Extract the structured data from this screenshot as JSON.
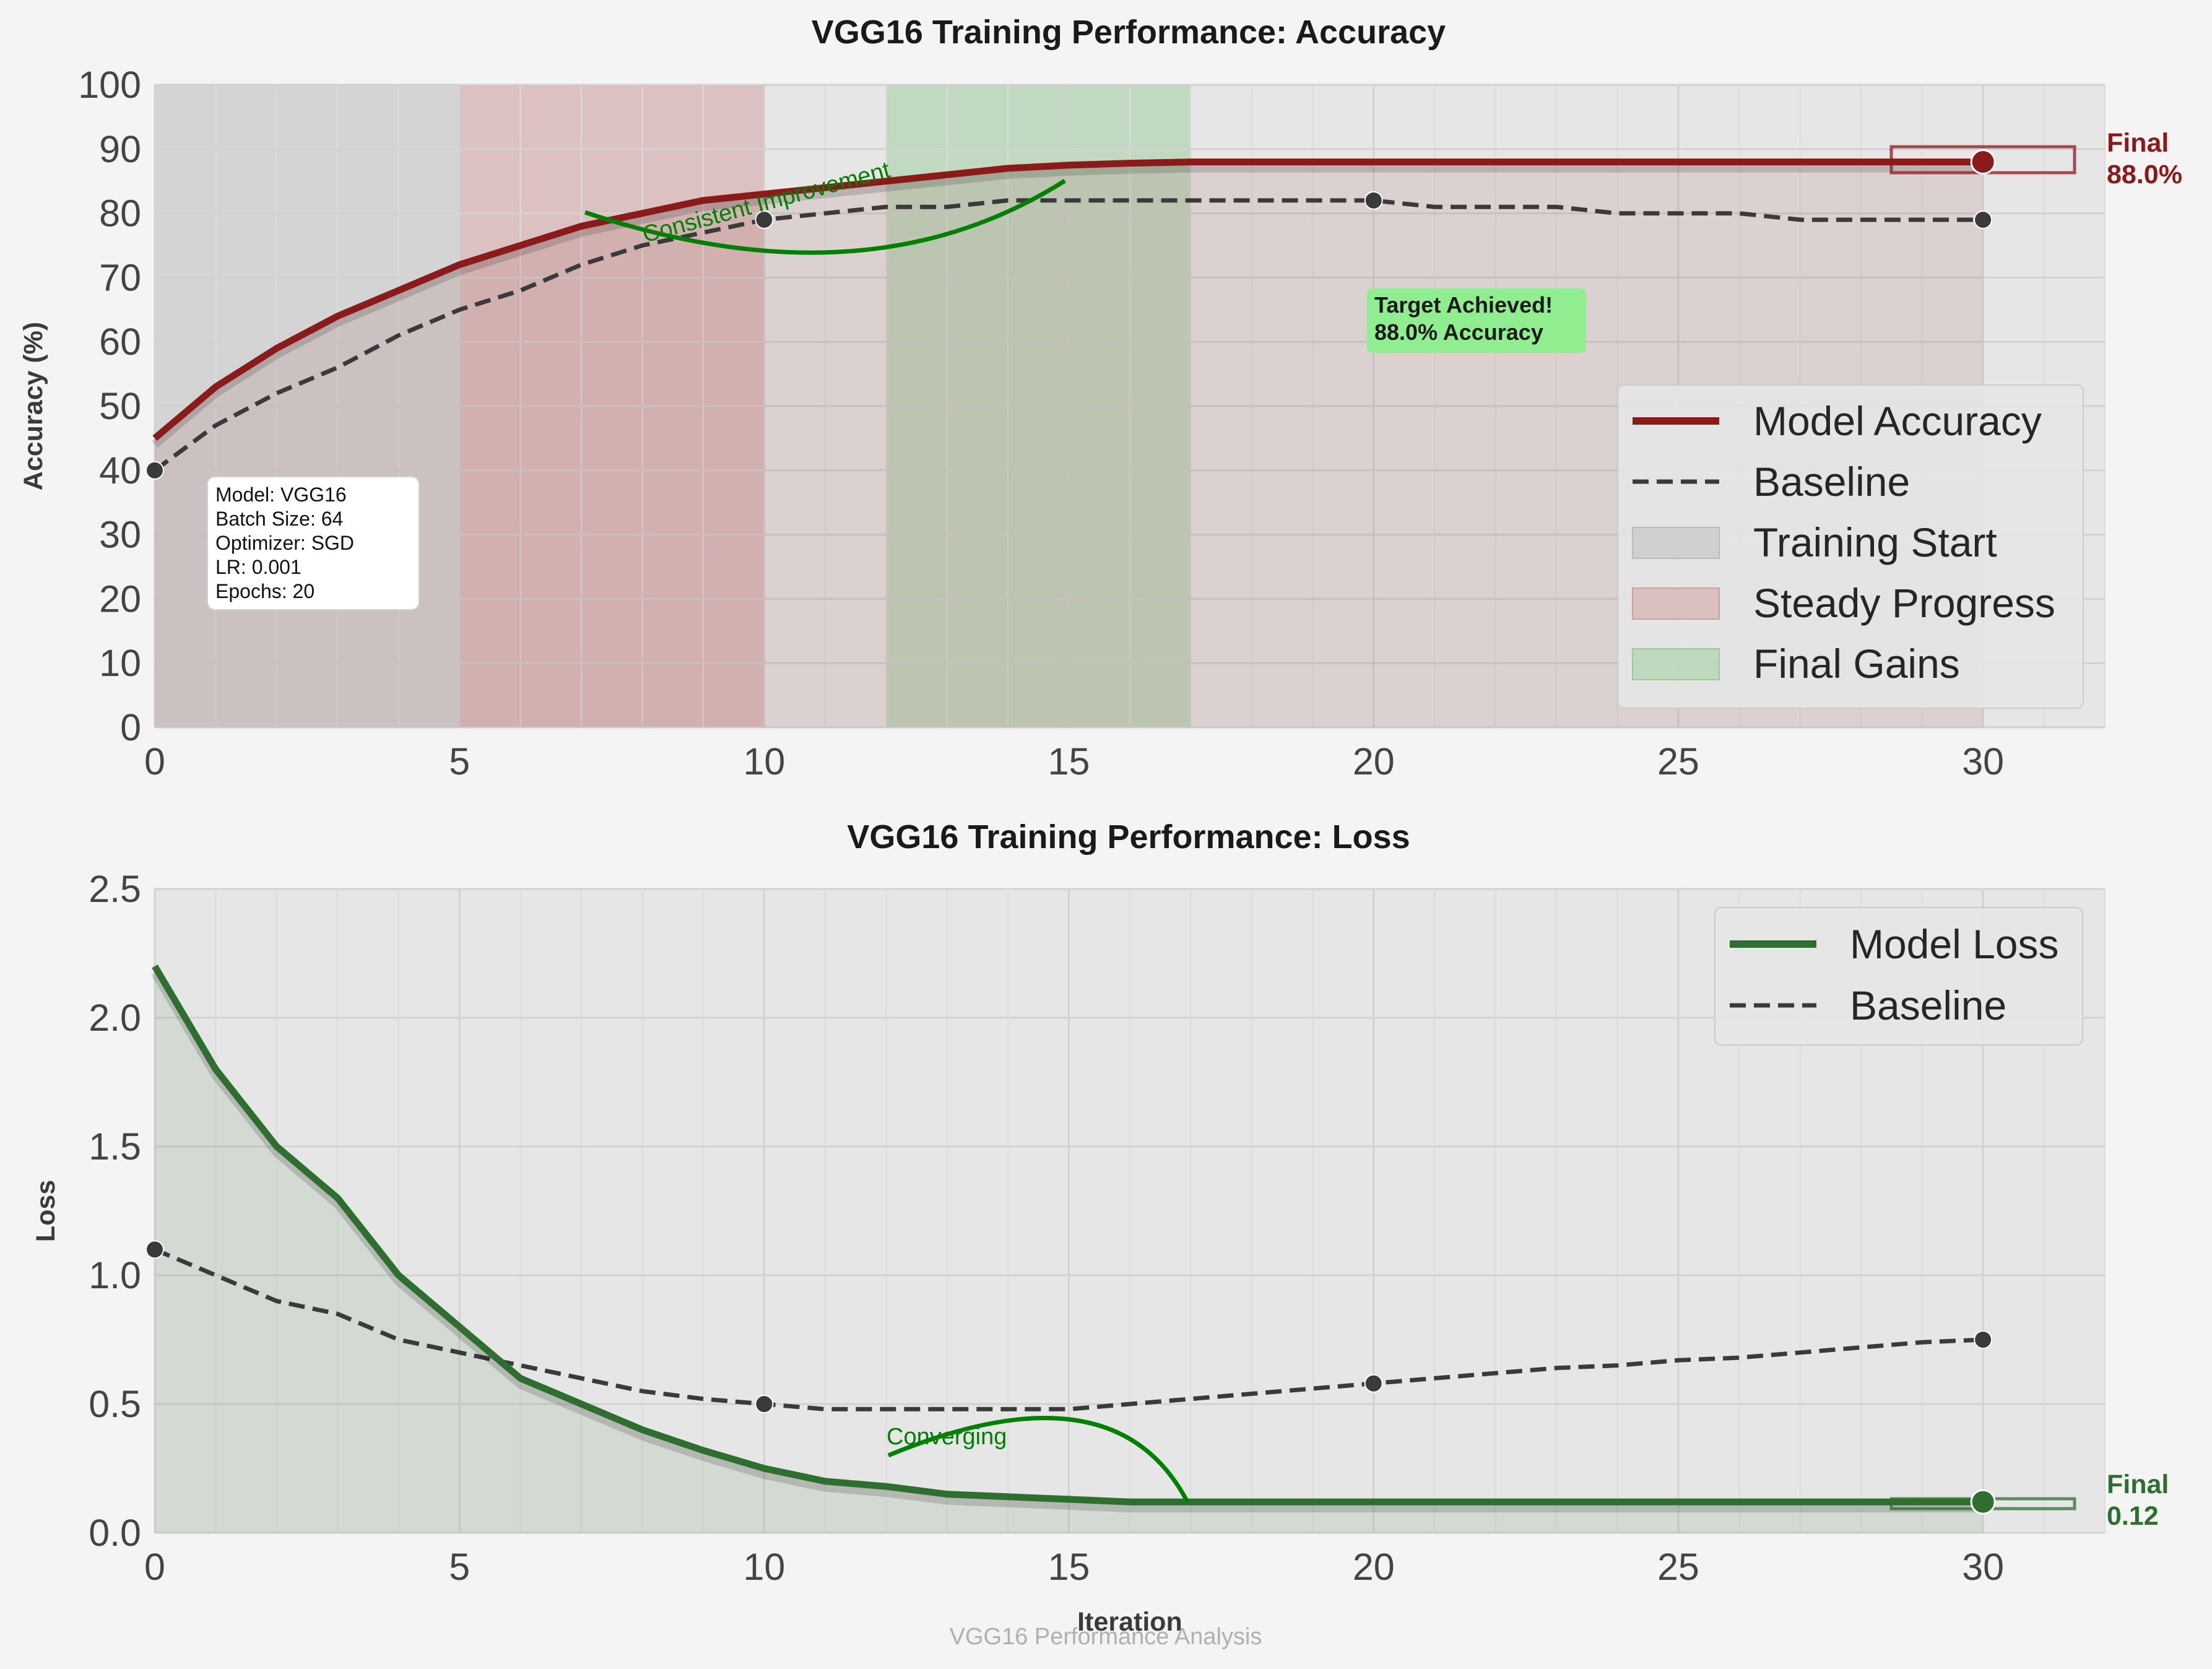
{
  "chart_data": [
    {
      "type": "line",
      "title": "VGG16 Training Performance: Accuracy",
      "xlabel": "",
      "ylabel": "Accuracy (%)",
      "xlim": [
        0,
        32
      ],
      "ylim": [
        0,
        100
      ],
      "x_ticks": [
        "0",
        "5",
        "10",
        "15",
        "20",
        "25",
        "30"
      ],
      "y_ticks": [
        "0",
        "10",
        "20",
        "30",
        "40",
        "50",
        "60",
        "70",
        "80",
        "90",
        "100"
      ],
      "grid": true,
      "legend_position": "right",
      "x": [
        0,
        1,
        2,
        3,
        4,
        5,
        6,
        7,
        8,
        9,
        10,
        11,
        12,
        13,
        14,
        15,
        16,
        17,
        18,
        19,
        20,
        21,
        22,
        23,
        24,
        25,
        26,
        27,
        28,
        29,
        30
      ],
      "series": [
        {
          "name": "Model Accuracy",
          "color": "#8b1a1a",
          "style": "solid",
          "values": [
            45,
            53,
            59,
            64,
            68,
            72,
            75,
            78,
            80,
            82,
            83,
            84,
            85,
            86,
            87,
            87.5,
            87.8,
            88,
            88,
            88,
            88,
            88,
            88,
            88,
            88,
            88,
            88,
            88,
            88,
            88,
            88
          ]
        },
        {
          "name": "Baseline",
          "color": "#3a3a3a",
          "style": "dashed",
          "values": [
            40,
            47,
            52,
            56,
            61,
            65,
            68,
            72,
            75,
            77,
            79,
            80,
            81,
            81,
            82,
            82,
            82,
            82,
            82,
            82,
            82,
            81,
            81,
            81,
            80,
            80,
            80,
            79,
            79,
            79,
            79
          ],
          "markers_at": [
            0,
            10,
            20,
            30
          ]
        }
      ],
      "regions": [
        {
          "name": "Training Start",
          "x_from": 0,
          "x_to": 5,
          "color": "#c8c8c8"
        },
        {
          "name": "Steady Progress",
          "x_from": 5,
          "x_to": 10,
          "color": "#d4a8a8"
        },
        {
          "name": "Final Gains",
          "x_from": 12,
          "x_to": 17,
          "color": "#a8d0a8"
        }
      ],
      "annotations": {
        "final_label": "Final",
        "final_value": "88.0%",
        "curve_note": "Consistent Improvement",
        "target_line1": "Target Achieved!",
        "target_line2": "88.0% Accuracy",
        "info_lines": [
          "Model: VGG16",
          "Batch Size: 64",
          "Optimizer: SGD",
          "LR: 0.001",
          "Epochs: 20"
        ]
      }
    },
    {
      "type": "line",
      "title": "VGG16 Training Performance: Loss",
      "xlabel": "Iteration",
      "ylabel": "Loss",
      "xlim": [
        0,
        32
      ],
      "ylim": [
        0,
        2.5
      ],
      "x_ticks": [
        "0",
        "5",
        "10",
        "15",
        "20",
        "25",
        "30"
      ],
      "y_ticks": [
        "0.0",
        "0.5",
        "1.0",
        "1.5",
        "2.0",
        "2.5"
      ],
      "grid": true,
      "legend_position": "top-right",
      "x": [
        0,
        1,
        2,
        3,
        4,
        5,
        6,
        7,
        8,
        9,
        10,
        11,
        12,
        13,
        14,
        15,
        16,
        17,
        18,
        19,
        20,
        21,
        22,
        23,
        24,
        25,
        26,
        27,
        28,
        29,
        30
      ],
      "series": [
        {
          "name": "Model Loss",
          "color": "#2e6e2e",
          "style": "solid",
          "values": [
            2.2,
            1.8,
            1.5,
            1.3,
            1.0,
            0.8,
            0.6,
            0.5,
            0.4,
            0.32,
            0.25,
            0.2,
            0.18,
            0.15,
            0.14,
            0.13,
            0.12,
            0.12,
            0.12,
            0.12,
            0.12,
            0.12,
            0.12,
            0.12,
            0.12,
            0.12,
            0.12,
            0.12,
            0.12,
            0.12,
            0.12
          ]
        },
        {
          "name": "Baseline",
          "color": "#3a3a3a",
          "style": "dashed",
          "values": [
            1.1,
            1.0,
            0.9,
            0.85,
            0.75,
            0.7,
            0.65,
            0.6,
            0.55,
            0.52,
            0.5,
            0.48,
            0.48,
            0.48,
            0.48,
            0.48,
            0.5,
            0.52,
            0.54,
            0.56,
            0.58,
            0.6,
            0.62,
            0.64,
            0.65,
            0.67,
            0.68,
            0.7,
            0.72,
            0.74,
            0.75
          ],
          "markers_at": [
            0,
            10,
            20,
            30
          ]
        }
      ],
      "annotations": {
        "final_label": "Final",
        "final_value": "0.12",
        "curve_note": "Converging"
      }
    }
  ],
  "footer": "VGG16 Performance Analysis"
}
